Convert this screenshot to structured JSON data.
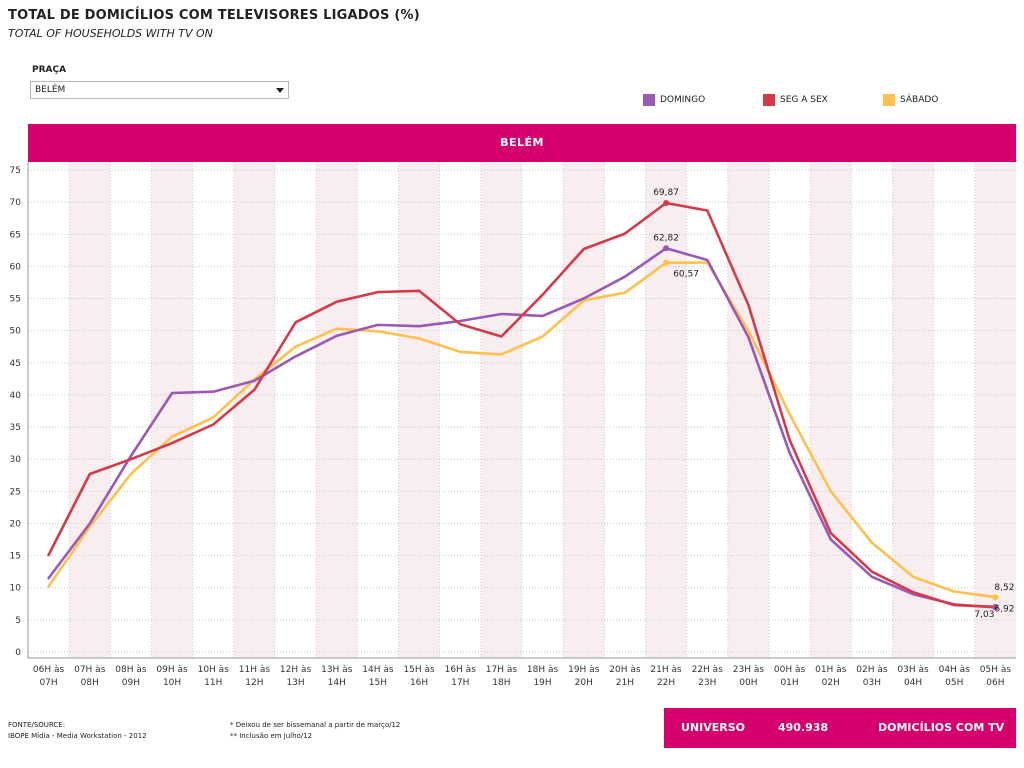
{
  "title": "TOTAL DE DOMICÍLIOS COM TELEVISORES LIGADOS (%)",
  "subtitle": "TOTAL OF HOUSEHOLDS WITH TV ON",
  "filter": {
    "label": "PRAÇA",
    "selected": "BELÉM"
  },
  "legend": [
    {
      "label": "DOMINGO",
      "color": "#9b59b6"
    },
    {
      "label": "SEG A SEX",
      "color": "#d43a4a"
    },
    {
      "label": "SÁBADO",
      "color": "#ffc04d"
    }
  ],
  "banner": "BELÉM",
  "footer": {
    "source_label": "FONTE/SOURCE:",
    "source": "IBOPE Mídia - Media Workstation - 2012",
    "note1": "* Deixou de ser bissemanal a partir de março/12",
    "note2": "** Inclusão em julho/12"
  },
  "universo": {
    "label": "UNIVERSO",
    "value": "490.938",
    "unit": "DOMICÍLIOS COM TV"
  },
  "chart_data": {
    "type": "line",
    "title": "BELÉM",
    "categories": [
      [
        "06H às",
        "07H"
      ],
      [
        "07H às",
        "08H"
      ],
      [
        "08H às",
        "09H"
      ],
      [
        "09H às",
        "10H"
      ],
      [
        "10H às",
        "11H"
      ],
      [
        "11H às",
        "12H"
      ],
      [
        "12H às",
        "13H"
      ],
      [
        "13H às",
        "14H"
      ],
      [
        "14H às",
        "15H"
      ],
      [
        "15H às",
        "16H"
      ],
      [
        "16H às",
        "17H"
      ],
      [
        "17H às",
        "18H"
      ],
      [
        "18H às",
        "19H"
      ],
      [
        "19H às",
        "20H"
      ],
      [
        "20H às",
        "21H"
      ],
      [
        "21H às",
        "22H"
      ],
      [
        "22H às",
        "23H"
      ],
      [
        "23H às",
        "00H"
      ],
      [
        "00H às",
        "01H"
      ],
      [
        "01H às",
        "02H"
      ],
      [
        "02H às",
        "03H"
      ],
      [
        "03H às",
        "04H"
      ],
      [
        "04H às",
        "05H"
      ],
      [
        "05H às",
        "06H"
      ]
    ],
    "ylim": [
      0,
      75
    ],
    "yticks": [
      0,
      5,
      10,
      15,
      20,
      25,
      30,
      35,
      40,
      45,
      50,
      55,
      60,
      65,
      70,
      75
    ],
    "series": [
      {
        "name": "DOMINGO",
        "color": "#9b59b6",
        "values": [
          11.5,
          20,
          30.5,
          40.3,
          40.5,
          42.2,
          46,
          49.2,
          50.9,
          50.7,
          51.5,
          52.6,
          52.3,
          55,
          58.4,
          62.82,
          61,
          49,
          31,
          17.5,
          11.7,
          9,
          7.4,
          6.92
        ]
      },
      {
        "name": "SEG A SEX",
        "color": "#d43a4a",
        "values": [
          15.1,
          27.7,
          30,
          32.5,
          35.4,
          40.8,
          51.3,
          54.5,
          56,
          56.2,
          51,
          49.1,
          55.6,
          62.7,
          65.1,
          69.87,
          68.7,
          54,
          33,
          18.5,
          12.5,
          9.3,
          7.3,
          7.03
        ]
      },
      {
        "name": "SÁBADO",
        "color": "#ffc04d",
        "values": [
          10.2,
          19.5,
          27.7,
          33.5,
          36.5,
          42.4,
          47.5,
          50.3,
          49.9,
          48.8,
          46.7,
          46.3,
          49.1,
          54.7,
          55.9,
          60.57,
          60.6,
          50,
          37,
          25,
          17,
          11.7,
          9.4,
          8.52
        ]
      }
    ],
    "annotations": [
      {
        "series": 1,
        "index": 15,
        "text": "69,87"
      },
      {
        "series": 0,
        "index": 15,
        "text": "62,82"
      },
      {
        "series": 2,
        "index": 15,
        "text": "60,57"
      },
      {
        "series": 2,
        "index": 23,
        "text": "8,52"
      },
      {
        "series": 1,
        "index": 23,
        "text": "7,03"
      },
      {
        "series": 0,
        "index": 23,
        "text": "6,92"
      }
    ],
    "grid": true
  }
}
